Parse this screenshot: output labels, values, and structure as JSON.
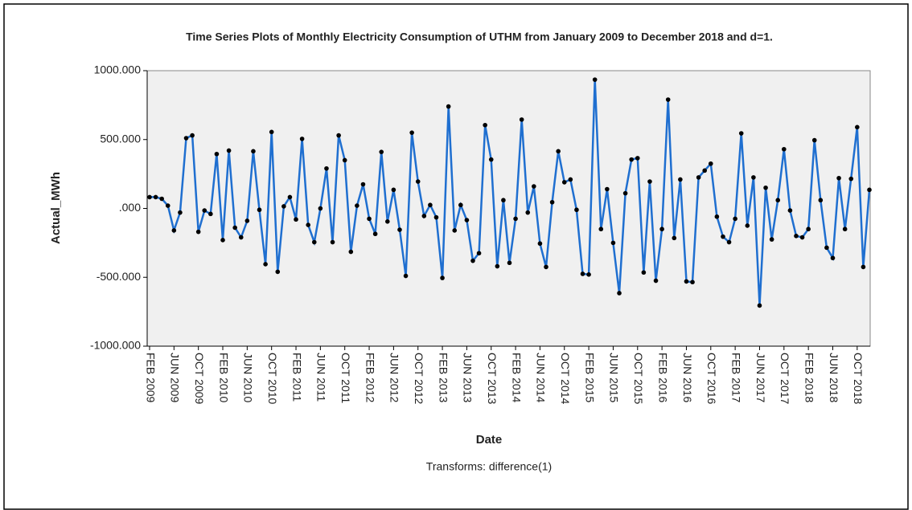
{
  "chart_data": {
    "type": "line",
    "title": "Time Series Plots of Monthly Electricity Consumption of UTHM from January 2009 to December 2018 and d=1.",
    "subtitle": "Transforms: difference(1)",
    "x_label": "Date",
    "y_label": "Actual_MWh",
    "categories": [
      "FEB 2009",
      null,
      null,
      null,
      "JUN 2009",
      null,
      null,
      null,
      "OCT 2009",
      null,
      null,
      null,
      "FEB 2010",
      null,
      null,
      null,
      "JUN 2010",
      null,
      null,
      null,
      "OCT 2010",
      null,
      null,
      null,
      "FEB 2011",
      null,
      null,
      null,
      "JUN 2011",
      null,
      null,
      null,
      "OCT 2011",
      null,
      null,
      null,
      "FEB 2012",
      null,
      null,
      null,
      "JUN 2012",
      null,
      null,
      null,
      "OCT 2012",
      null,
      null,
      null,
      "FEB 2013",
      null,
      null,
      null,
      "JUN 2013",
      null,
      null,
      null,
      "OCT 2013",
      null,
      null,
      null,
      "FEB 2014",
      null,
      null,
      null,
      "JUN 2014",
      null,
      null,
      null,
      "OCT 2014",
      null,
      null,
      null,
      "FEB 2015",
      null,
      null,
      null,
      "JUN 2015",
      null,
      null,
      null,
      "OCT 2015",
      null,
      null,
      null,
      "FEB 2016",
      null,
      null,
      null,
      "JUN 2016",
      null,
      null,
      null,
      "OCT 2016",
      null,
      null,
      null,
      "FEB 2017",
      null,
      null,
      null,
      "JUN 2017",
      null,
      null,
      null,
      "OCT 2017",
      null,
      null,
      null,
      "FEB 2018",
      null,
      null,
      null,
      "JUN 2018",
      null,
      null,
      null,
      "OCT 2018",
      null,
      null
    ],
    "series": [
      {
        "name": "Actual_MWh",
        "color": "#1f6fd0",
        "marker_color": "#000000",
        "values": [
          82,
          82,
          70,
          20,
          -160,
          -30,
          510,
          530,
          -170,
          -15,
          -40,
          395,
          -230,
          420,
          -140,
          -210,
          -90,
          415,
          -10,
          -405,
          555,
          -460,
          15,
          82,
          -80,
          505,
          -120,
          -245,
          0,
          290,
          -245,
          530,
          350,
          -315,
          20,
          175,
          -75,
          -185,
          410,
          -95,
          135,
          -155,
          -490,
          550,
          195,
          -55,
          25,
          -65,
          -505,
          740,
          -160,
          25,
          -85,
          -380,
          -325,
          605,
          355,
          -420,
          60,
          -395,
          -75,
          645,
          -30,
          160,
          -255,
          -425,
          45,
          415,
          190,
          210,
          -10,
          -475,
          -480,
          935,
          -150,
          140,
          -250,
          -615,
          110,
          355,
          365,
          -465,
          195,
          -525,
          -150,
          790,
          -215,
          210,
          -530,
          -535,
          225,
          275,
          325,
          -60,
          -205,
          -245,
          -75,
          545,
          -125,
          225,
          -705,
          150,
          -225,
          60,
          430,
          -15,
          -200,
          -210,
          -150,
          495,
          60,
          -285,
          -360,
          220,
          -150,
          215,
          590,
          -425,
          135
        ]
      }
    ],
    "ylim": [
      -1000,
      1000
    ],
    "yticks": [
      {
        "value": -1000,
        "label": "-1000.000"
      },
      {
        "value": -500,
        "label": "-500.000"
      },
      {
        "value": 0,
        "label": ".000"
      },
      {
        "value": 500,
        "label": "500.000"
      },
      {
        "value": 1000,
        "label": "1000.000"
      }
    ],
    "grid": false,
    "plot_background": "#f0f0f0"
  }
}
